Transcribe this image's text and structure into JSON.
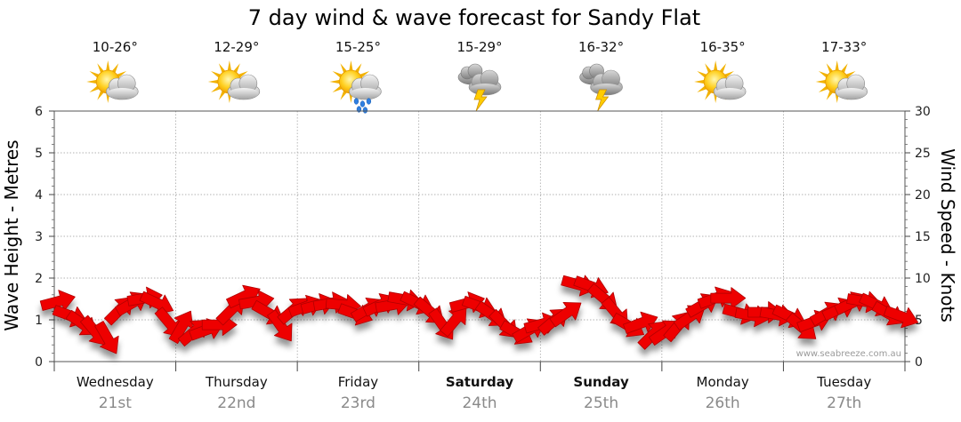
{
  "chart_data": {
    "type": "line",
    "title": "7 day wind & wave forecast for Sandy Flat",
    "ylabel_left": "Wave Height - Metres",
    "ylabel_right": "Wind Speed - Knots",
    "ylim_left": [
      0,
      6
    ],
    "ylim_right": [
      0,
      30
    ],
    "left_ticks": [
      "0",
      "1",
      "2",
      "3",
      "4",
      "5",
      "6"
    ],
    "right_ticks": [
      "0",
      "5",
      "10",
      "15",
      "20",
      "25",
      "30"
    ],
    "days": [
      {
        "day": "Wednesday",
        "date": "21st",
        "temp": "10-26°",
        "icon": "sun-cloud-icon",
        "bold": false
      },
      {
        "day": "Thursday",
        "date": "22nd",
        "temp": "12-29°",
        "icon": "sun-cloud-icon",
        "bold": false
      },
      {
        "day": "Friday",
        "date": "23rd",
        "temp": "15-25°",
        "icon": "sun-cloud-rain-icon",
        "bold": false
      },
      {
        "day": "Saturday",
        "date": "24th",
        "temp": "15-29°",
        "icon": "storm-cloud-icon",
        "bold": true
      },
      {
        "day": "Sunday",
        "date": "25th",
        "temp": "16-32°",
        "icon": "storm-cloud-icon",
        "bold": true
      },
      {
        "day": "Monday",
        "date": "26th",
        "temp": "16-35°",
        "icon": "sun-cloud-icon",
        "bold": false
      },
      {
        "day": "Tuesday",
        "date": "27th",
        "temp": "17-33°",
        "icon": "sun-cloud-icon",
        "bold": false
      }
    ],
    "wind_series": {
      "name": "Wind Speed - Knots",
      "color": "#ee0000",
      "values": [
        7.2,
        5.5,
        4.5,
        3.6,
        2.8,
        6.2,
        7.0,
        7.6,
        7.0,
        4.6,
        4.2,
        3.6,
        3.8,
        4.4,
        6.2,
        7.8,
        7.2,
        5.8,
        4.2,
        6.2,
        6.6,
        6.8,
        7.0,
        6.8,
        5.7,
        6.3,
        6.8,
        6.8,
        7.4,
        7.0,
        6.0,
        4.4,
        4.9,
        7.0,
        6.6,
        5.6,
        4.4,
        3.4,
        3.8,
        4.5,
        4.9,
        5.8,
        9.2,
        9.0,
        7.6,
        5.8,
        4.3,
        4.6,
        3.3,
        3.6,
        4.3,
        5.4,
        6.8,
        7.6,
        7.6,
        5.8,
        5.5,
        5.9,
        5.6,
        5.4,
        4.1,
        4.8,
        5.8,
        6.3,
        7.0,
        7.2,
        6.8,
        5.7,
        5.4
      ],
      "directions_deg": [
        -15,
        20,
        35,
        50,
        60,
        -45,
        -30,
        -10,
        25,
        50,
        -60,
        -40,
        -20,
        0,
        -45,
        -25,
        -10,
        30,
        55,
        -40,
        -20,
        -15,
        -10,
        5,
        20,
        -30,
        -25,
        -10,
        10,
        25,
        40,
        55,
        -50,
        -15,
        20,
        35,
        45,
        30,
        -30,
        -15,
        -40,
        -35,
        15,
        20,
        40,
        50,
        30,
        -20,
        -45,
        -35,
        -50,
        -35,
        -30,
        -20,
        0,
        15,
        10,
        0,
        10,
        25,
        40,
        -20,
        -30,
        -25,
        -25,
        10,
        25,
        30,
        20
      ]
    },
    "watermark": "www.seabreeze.com.au"
  }
}
